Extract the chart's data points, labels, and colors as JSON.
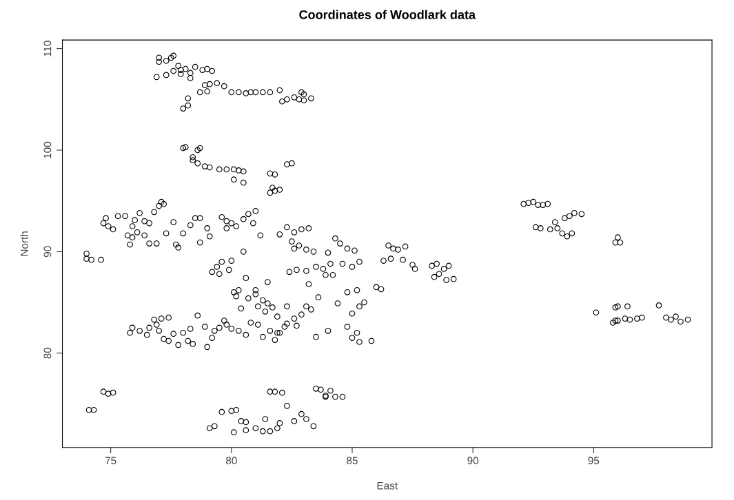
{
  "chart_data": {
    "type": "scatter",
    "title": "Coordinates of Woodlark data",
    "xlabel": "East",
    "ylabel": "North",
    "xlim": [
      73.0,
      99.9
    ],
    "ylim": [
      70.7,
      110.85
    ],
    "xticks": [
      75,
      80,
      85,
      90,
      95
    ],
    "yticks": [
      80,
      90,
      100,
      110
    ],
    "grid": false,
    "legend": false,
    "marker": "circle",
    "series": [
      {
        "color": "#000000",
        "x": [
          77.0,
          77.0,
          77.3,
          77.5,
          77.6,
          77.8,
          77.9,
          78.1,
          78.3,
          78.5,
          78.8,
          79.0,
          79.2,
          76.9,
          77.3,
          77.6,
          77.9,
          78.3,
          79.1,
          79.4,
          79.7,
          80.0,
          78.9,
          78.7,
          79.0,
          78.2,
          78.0,
          78.2,
          80.3,
          80.6,
          80.8,
          81.0,
          81.3,
          81.6,
          82.0,
          82.1,
          82.3,
          82.6,
          82.8,
          83.0,
          83.0,
          83.3,
          82.9,
          78.0,
          78.1,
          78.4,
          78.4,
          78.6,
          78.7,
          78.9,
          79.1,
          78.6,
          79.5,
          79.8,
          80.1,
          80.3,
          80.5,
          80.1,
          80.5,
          81.6,
          81.8,
          81.7,
          81.8,
          82.0,
          81.6,
          82.3,
          82.5,
          74.0,
          74.0,
          74.2,
          74.6,
          74.7,
          74.8,
          74.9,
          75.1,
          75.3,
          75.6,
          75.7,
          75.9,
          76.0,
          76.2,
          76.4,
          76.6,
          76.8,
          77.0,
          77.1,
          77.2,
          75.9,
          76.1,
          76.4,
          76.6,
          76.9,
          77.3,
          77.6,
          78.0,
          77.7,
          77.8,
          78.3,
          78.5,
          78.7,
          78.7,
          79.0,
          79.1,
          75.8,
          74.1,
          74.3,
          74.7,
          74.9,
          75.1,
          79.6,
          79.8,
          80.0,
          80.2,
          79.8,
          80.5,
          80.7,
          81.0,
          80.9,
          81.2,
          80.5,
          79.6,
          79.4,
          79.2,
          79.5,
          79.9,
          80.0,
          80.6,
          80.3,
          80.1,
          80.2,
          80.7,
          81.0,
          81.3,
          81.5,
          81.1,
          81.4,
          81.7,
          81.9,
          82.3,
          81.5,
          81.0,
          82.0,
          82.3,
          82.6,
          82.9,
          83.2,
          82.5,
          82.8,
          83.1,
          83.4,
          82.6,
          82.4,
          82.7,
          83.1,
          83.5,
          83.8,
          84.1,
          83.9,
          83.2,
          83.6,
          83.1,
          82.9,
          82.6,
          82.3,
          82.7,
          83.3,
          84.2,
          84.0,
          84.3,
          84.5,
          84.8,
          85.1,
          84.6,
          85.0,
          85.3,
          84.8,
          85.2,
          84.4,
          85.0,
          85.3,
          85.5,
          84.8,
          85.0,
          85.3,
          85.2,
          85.8,
          83.5,
          84.0,
          82.0,
          86.0,
          86.2,
          86.3,
          86.5,
          86.7,
          86.9,
          87.1,
          87.2,
          87.5,
          87.6,
          88.3,
          88.5,
          88.6,
          88.4,
          88.8,
          89.0,
          89.2,
          88.9,
          86.6,
          75.8,
          75.9,
          76.2,
          76.5,
          76.6,
          76.8,
          77.0,
          77.2,
          77.4,
          77.6,
          77.8,
          78.0,
          78.2,
          78.4,
          78.3,
          78.6,
          78.9,
          79.0,
          79.2,
          79.5,
          79.8,
          80.0,
          80.3,
          80.6,
          80.8,
          81.1,
          81.3,
          81.6,
          81.9,
          82.2,
          76.9,
          77.1,
          77.4,
          79.7,
          80.4,
          81.8,
          79.3,
          79.1,
          79.3,
          79.6,
          80.0,
          80.2,
          80.1,
          80.4,
          80.6,
          80.6,
          81.0,
          81.3,
          81.6,
          81.9,
          81.4,
          81.6,
          81.8,
          82.1,
          82.3,
          82.0,
          82.6,
          82.9,
          83.1,
          83.4,
          83.5,
          83.7,
          83.9,
          84.1,
          84.3,
          84.6,
          83.9,
          92.1,
          92.3,
          92.5,
          92.7,
          92.9,
          93.1,
          92.6,
          92.8,
          93.2,
          93.4,
          93.5,
          93.7,
          93.9,
          94.1,
          93.8,
          94.0,
          94.2,
          94.5,
          96.0,
          95.9,
          96.1,
          95.1,
          95.9,
          96.0,
          96.4,
          95.8,
          96.0,
          96.3,
          96.5,
          96.8,
          97.0,
          97.7,
          98.0,
          98.2,
          98.4,
          98.6,
          98.9,
          95.9
        ],
        "values": [
          109.1,
          108.7,
          108.8,
          109.1,
          109.3,
          108.3,
          107.9,
          108.0,
          107.6,
          108.2,
          107.9,
          108.0,
          107.8,
          107.2,
          107.4,
          107.8,
          107.5,
          107.1,
          106.5,
          106.6,
          106.3,
          105.7,
          106.4,
          105.7,
          105.8,
          104.4,
          104.1,
          105.1,
          105.7,
          105.6,
          105.7,
          105.7,
          105.7,
          105.7,
          105.9,
          104.8,
          105.0,
          105.2,
          105.0,
          105.5,
          104.9,
          105.1,
          105.7,
          100.2,
          100.3,
          99.3,
          99.0,
          98.7,
          100.2,
          98.4,
          98.3,
          100.0,
          98.1,
          98.1,
          98.1,
          98.0,
          97.9,
          97.1,
          96.8,
          97.7,
          97.6,
          96.3,
          96.0,
          96.1,
          95.8,
          98.6,
          98.7,
          89.8,
          89.3,
          89.2,
          89.2,
          92.8,
          93.3,
          92.5,
          92.2,
          93.5,
          93.5,
          91.6,
          92.5,
          93.1,
          93.8,
          93.0,
          92.8,
          93.9,
          94.5,
          94.9,
          94.7,
          91.4,
          91.9,
          91.6,
          90.8,
          90.8,
          91.8,
          92.9,
          91.8,
          90.7,
          90.4,
          92.6,
          93.3,
          93.3,
          90.9,
          92.3,
          91.5,
          90.7,
          74.4,
          74.4,
          76.2,
          76.0,
          76.1,
          93.4,
          93.0,
          92.8,
          92.5,
          92.3,
          93.2,
          93.7,
          94.0,
          92.8,
          91.6,
          90.0,
          89.0,
          88.5,
          88.0,
          87.8,
          88.2,
          89.1,
          87.4,
          86.2,
          86.0,
          85.6,
          85.4,
          86.2,
          85.2,
          84.9,
          84.6,
          84.1,
          84.5,
          83.6,
          84.6,
          87.0,
          85.8,
          91.7,
          92.4,
          91.9,
          92.2,
          92.3,
          91.0,
          90.6,
          90.2,
          90.0,
          90.3,
          88.0,
          88.2,
          88.1,
          88.5,
          88.3,
          88.8,
          87.7,
          86.8,
          85.5,
          84.6,
          83.8,
          83.4,
          82.9,
          82.7,
          84.3,
          87.7,
          89.9,
          91.3,
          90.8,
          90.3,
          90.1,
          88.8,
          88.5,
          89.0,
          86.0,
          86.2,
          84.9,
          83.9,
          84.6,
          85.0,
          82.6,
          81.5,
          81.1,
          82.0,
          81.2,
          81.6,
          82.2,
          82.0,
          86.5,
          86.3,
          89.1,
          90.6,
          90.3,
          90.2,
          89.2,
          90.5,
          88.7,
          88.3,
          88.6,
          88.8,
          87.8,
          87.5,
          88.3,
          88.6,
          87.3,
          87.2,
          89.3,
          82.0,
          82.5,
          82.2,
          81.8,
          82.5,
          83.3,
          82.2,
          81.4,
          81.2,
          81.9,
          80.8,
          82.0,
          81.2,
          80.9,
          82.4,
          83.7,
          82.6,
          80.6,
          81.5,
          82.5,
          82.8,
          82.4,
          82.2,
          81.8,
          83.0,
          82.8,
          81.6,
          82.2,
          82.0,
          82.6,
          82.8,
          83.4,
          83.5,
          83.2,
          84.4,
          81.3,
          82.2,
          72.6,
          72.8,
          74.2,
          74.3,
          74.4,
          72.2,
          73.3,
          73.2,
          72.4,
          72.6,
          72.3,
          72.3,
          72.6,
          73.5,
          76.2,
          76.2,
          76.1,
          74.8,
          73.1,
          73.3,
          74.0,
          73.5,
          72.8,
          76.5,
          76.4,
          75.8,
          76.3,
          75.7,
          75.7,
          75.7,
          94.7,
          94.8,
          94.9,
          94.6,
          94.6,
          94.7,
          92.4,
          92.3,
          92.2,
          92.9,
          92.3,
          91.8,
          91.5,
          91.8,
          93.3,
          93.5,
          93.8,
          93.7,
          91.4,
          90.9,
          90.9,
          84.0,
          84.5,
          84.6,
          84.6,
          83.0,
          83.2,
          83.4,
          83.3,
          83.4,
          83.5,
          84.7,
          83.5,
          83.3,
          83.6,
          83.1,
          83.3,
          83.2
        ]
      }
    ]
  }
}
